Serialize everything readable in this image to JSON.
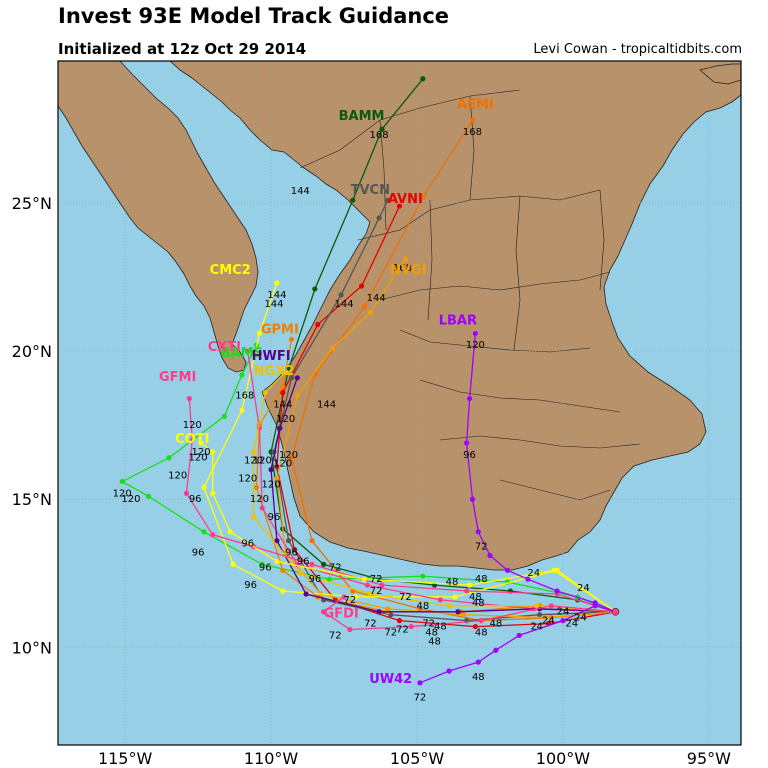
{
  "header": {
    "title": "Invest 93E Model Track Guidance",
    "subtitle": "Initialized at 12z Oct 29 2014",
    "credit": "Levi Cowan - tropicaltidbits.com"
  },
  "map": {
    "lon_range": [
      -117.3,
      -93.9
    ],
    "lat_range": [
      6.7,
      29.8
    ],
    "lon_ticks": [
      {
        "value": -115,
        "label": "115°W"
      },
      {
        "value": -110,
        "label": "110°W"
      },
      {
        "value": -105,
        "label": "105°W"
      },
      {
        "value": -100,
        "label": "100°W"
      },
      {
        "value": -95,
        "label": "95°W"
      }
    ],
    "lat_ticks": [
      {
        "value": 25,
        "label": "25°N"
      },
      {
        "value": 20,
        "label": "20°N"
      },
      {
        "value": 15,
        "label": "15°N"
      },
      {
        "value": 10,
        "label": "10°N"
      }
    ],
    "colors": {
      "ocean": "#97d0e6",
      "land": "#b8926a",
      "border": "#222222",
      "grid": "#8aaab8"
    }
  },
  "chart_data": {
    "type": "line",
    "title": "Invest 93E Model Track Guidance",
    "initial_position": [
      -98.2,
      11.2
    ],
    "series": [
      {
        "name": "BAMM",
        "color": "#0b5a0b",
        "label_pos": [
          -106.9,
          27.8
        ],
        "points": [
          [
            -98.2,
            11.2
          ],
          [
            -99.5,
            11.6
          ],
          [
            -101.8,
            11.9
          ],
          [
            -104.4,
            12.1
          ],
          [
            -106.3,
            12.3
          ],
          [
            -108.2,
            12.8
          ],
          [
            -109.6,
            14.0
          ],
          [
            -110.0,
            16.6
          ],
          [
            -109.4,
            19.4
          ],
          [
            -108.5,
            22.1
          ],
          [
            -107.2,
            25.1
          ],
          [
            -106.2,
            27.5
          ],
          [
            -104.8,
            29.2
          ]
        ],
        "hour_labels": [
          [
            -106.3,
            27.2,
            "168"
          ],
          [
            -109.0,
            25.3,
            "144"
          ]
        ]
      },
      {
        "name": "BAMS",
        "color": "#18e018",
        "label_pos": [
          -111.0,
          19.8
        ],
        "points": [
          [
            -98.2,
            11.2
          ],
          [
            -99.5,
            11.7
          ],
          [
            -101.9,
            12.2
          ],
          [
            -104.8,
            12.4
          ],
          [
            -108.0,
            12.3
          ],
          [
            -110.3,
            12.8
          ],
          [
            -112.3,
            13.9
          ],
          [
            -114.2,
            15.1
          ],
          [
            -115.1,
            15.6
          ],
          [
            -113.5,
            16.4
          ],
          [
            -111.6,
            17.8
          ],
          [
            -111.0,
            19.2
          ],
          [
            -110.5,
            20.2
          ]
        ],
        "hour_labels": [
          [
            -115.1,
            15.1,
            "120"
          ]
        ]
      },
      {
        "name": "AEMI",
        "color": "#f07000",
        "label_pos": [
          -103.0,
          28.2
        ],
        "points": [
          [
            -98.2,
            11.2
          ],
          [
            -100.4,
            11.0
          ],
          [
            -102.8,
            10.9
          ],
          [
            -104.9,
            11.3
          ],
          [
            -107.2,
            11.9
          ],
          [
            -108.6,
            13.6
          ],
          [
            -109.3,
            16.4
          ],
          [
            -108.5,
            19.2
          ],
          [
            -106.8,
            21.5
          ],
          [
            -104.8,
            25.2
          ],
          [
            -103.1,
            27.8
          ]
        ],
        "hour_labels": [
          [
            -103.1,
            27.3,
            "168"
          ]
        ]
      },
      {
        "name": "AVNI",
        "color": "#e80000",
        "label_pos": [
          -105.4,
          25.0
        ],
        "points": [
          [
            -98.2,
            11.2
          ],
          [
            -100.5,
            10.8
          ],
          [
            -103.0,
            10.7
          ],
          [
            -105.6,
            10.9
          ],
          [
            -107.8,
            11.6
          ],
          [
            -109.2,
            13.3
          ],
          [
            -109.8,
            16.1
          ],
          [
            -109.6,
            18.6
          ],
          [
            -108.4,
            20.9
          ],
          [
            -106.9,
            22.2
          ],
          [
            -105.6,
            24.9
          ]
        ],
        "hour_labels": []
      },
      {
        "name": "TVCN",
        "color": "#555555",
        "label_pos": [
          -106.6,
          25.3
        ],
        "points": [
          [
            -98.2,
            11.2
          ],
          [
            -100.8,
            11.1
          ],
          [
            -103.3,
            10.9
          ],
          [
            -105.9,
            11.1
          ],
          [
            -108.2,
            11.6
          ],
          [
            -109.4,
            13.6
          ],
          [
            -109.9,
            16.6
          ],
          [
            -109.3,
            19.1
          ],
          [
            -107.6,
            21.9
          ],
          [
            -106.3,
            24.5
          ],
          [
            -106.0,
            25.1
          ]
        ],
        "hour_labels": [
          [
            -107.5,
            21.5,
            "144"
          ]
        ]
      },
      {
        "name": "NVGI",
        "color": "#f0a000",
        "label_pos": [
          -105.3,
          22.6
        ],
        "points": [
          [
            -98.2,
            11.2
          ],
          [
            -100.6,
            11.0
          ],
          [
            -103.4,
            11.1
          ],
          [
            -106.0,
            11.3
          ],
          [
            -108.3,
            11.8
          ],
          [
            -109.5,
            13.2
          ],
          [
            -109.8,
            15.7
          ],
          [
            -109.1,
            18.5
          ],
          [
            -107.9,
            20.1
          ],
          [
            -106.6,
            21.3
          ],
          [
            -105.4,
            23.1
          ]
        ],
        "hour_labels": [
          [
            -105.5,
            22.7,
            "168"
          ],
          [
            -106.4,
            21.7,
            "144"
          ]
        ]
      },
      {
        "name": "CMC2",
        "color": "#ffff00",
        "label_pos": [
          -111.4,
          22.6
        ],
        "points": [
          [
            -98.2,
            11.2
          ],
          [
            -100.2,
            12.6
          ],
          [
            -103.7,
            11.7
          ],
          [
            -107.1,
            11.7
          ],
          [
            -109.6,
            11.9
          ],
          [
            -111.3,
            12.8
          ],
          [
            -112.3,
            15.4
          ],
          [
            -111.0,
            18.0
          ],
          [
            -110.4,
            20.6
          ],
          [
            -109.8,
            22.3
          ]
        ],
        "hour_labels": [
          [
            -109.8,
            21.8,
            "144"
          ],
          [
            -109.9,
            21.5,
            "144"
          ]
        ]
      },
      {
        "name": "GPMI",
        "color": "#f08000",
        "label_pos": [
          -109.7,
          20.6
        ],
        "points": [
          [
            -98.2,
            11.2
          ],
          [
            -100.8,
            11.4
          ],
          [
            -103.5,
            11.2
          ],
          [
            -106.0,
            11.2
          ],
          [
            -108.4,
            11.7
          ],
          [
            -109.6,
            12.6
          ],
          [
            -110.5,
            15.4
          ],
          [
            -110.4,
            17.5
          ],
          [
            -109.6,
            18.8
          ],
          [
            -109.3,
            20.4
          ]
        ],
        "hour_labels": [
          [
            -109.5,
            17.6,
            "120"
          ]
        ]
      },
      {
        "name": "CXTI",
        "color": "#ff3b8a",
        "label_pos": [
          -111.6,
          20.0
        ],
        "points": [
          [
            -98.2,
            11.2
          ],
          [
            -101.0,
            11.3
          ],
          [
            -104.2,
            11.6
          ],
          [
            -106.7,
            12.1
          ],
          [
            -109.1,
            12.8
          ],
          [
            -110.3,
            14.7
          ],
          [
            -110.4,
            17.4
          ],
          [
            -110.8,
            20.0
          ]
        ],
        "hour_labels": [
          [
            -110.9,
            18.4,
            "168"
          ]
        ]
      },
      {
        "name": "HWFI",
        "color": "#5a008a",
        "label_pos": [
          -110.0,
          19.7
        ],
        "points": [
          [
            -98.2,
            11.2
          ],
          [
            -100.8,
            11.3
          ],
          [
            -103.6,
            11.2
          ],
          [
            -106.3,
            11.2
          ],
          [
            -108.8,
            11.8
          ],
          [
            -109.8,
            13.6
          ],
          [
            -110.0,
            16.0
          ],
          [
            -109.7,
            17.4
          ],
          [
            -109.1,
            19.1
          ]
        ],
        "hour_labels": [
          [
            -109.6,
            16.1,
            "120"
          ]
        ]
      },
      {
        "name": "NGX2",
        "color": "#f0c000",
        "label_pos": [
          -109.9,
          19.2
        ],
        "points": [
          [
            -98.2,
            11.2
          ],
          [
            -100.9,
            11.4
          ],
          [
            -103.9,
            11.4
          ],
          [
            -106.6,
            11.8
          ],
          [
            -109.0,
            12.5
          ],
          [
            -110.6,
            14.4
          ],
          [
            -110.6,
            16.6
          ],
          [
            -110.2,
            18.6
          ],
          [
            -109.5,
            19.3
          ]
        ],
        "hour_labels": [
          [
            -109.4,
            16.4,
            "120"
          ]
        ]
      },
      {
        "name": "GFMI",
        "color": "#ff3b8a",
        "label_pos": [
          -113.2,
          19.0
        ],
        "points": [
          [
            -98.2,
            11.2
          ],
          [
            -100.2,
            11.8
          ],
          [
            -103.3,
            11.9
          ],
          [
            -106.2,
            12.1
          ],
          [
            -108.6,
            12.8
          ],
          [
            -110.6,
            13.4
          ],
          [
            -112.0,
            13.8
          ],
          [
            -112.9,
            15.2
          ],
          [
            -112.7,
            17.0
          ],
          [
            -112.8,
            18.4
          ]
        ],
        "hour_labels": [
          [
            -112.7,
            17.4,
            "120"
          ],
          [
            -112.6,
            14.9,
            "96"
          ]
        ]
      },
      {
        "name": "COTI",
        "color": "#ffff00",
        "label_pos": [
          -112.7,
          16.9
        ],
        "points": [
          [
            -98.2,
            11.2
          ],
          [
            -100.3,
            12.6
          ],
          [
            -103.2,
            12.1
          ],
          [
            -106.8,
            12.3
          ],
          [
            -109.8,
            12.9
          ],
          [
            -111.4,
            13.9
          ],
          [
            -112.0,
            15.2
          ],
          [
            -112.0,
            16.6
          ],
          [
            -112.4,
            16.9
          ]
        ],
        "hour_labels": [
          [
            -112.5,
            16.3,
            "120"
          ]
        ]
      },
      {
        "name": "GFDI",
        "color": "#ff3b8a",
        "label_pos": [
          -107.6,
          11.0
        ],
        "points": [
          [
            -98.2,
            11.2
          ],
          [
            -100.4,
            11.4
          ],
          [
            -102.8,
            10.9
          ],
          [
            -105.2,
            10.7
          ],
          [
            -107.3,
            10.6
          ],
          [
            -108.2,
            11.2
          ],
          [
            -107.5,
            11.7
          ]
        ],
        "hour_labels": []
      },
      {
        "name": "LBAR",
        "color": "#a000ff",
        "label_pos": [
          -103.6,
          20.9
        ],
        "points": [
          [
            -98.2,
            11.2
          ],
          [
            -98.9,
            11.5
          ],
          [
            -100.2,
            11.9
          ],
          [
            -101.2,
            12.3
          ],
          [
            -101.9,
            12.6
          ],
          [
            -102.5,
            13.1
          ],
          [
            -102.9,
            13.9
          ],
          [
            -103.1,
            15.0
          ],
          [
            -103.3,
            16.9
          ],
          [
            -103.2,
            18.4
          ],
          [
            -103.0,
            20.6
          ]
        ],
        "hour_labels": [
          [
            -103.0,
            20.1,
            "120"
          ],
          [
            -103.2,
            16.4,
            "96"
          ],
          [
            -102.8,
            13.3,
            "72"
          ]
        ]
      },
      {
        "name": "UW42",
        "color": "#a000ff",
        "label_pos": [
          -105.9,
          8.8
        ],
        "points": [
          [
            -98.2,
            11.2
          ],
          [
            -98.9,
            11.4
          ],
          [
            -100.0,
            10.9
          ],
          [
            -101.5,
            10.4
          ],
          [
            -102.3,
            9.9
          ],
          [
            -102.9,
            9.5
          ],
          [
            -103.9,
            9.2
          ],
          [
            -104.9,
            8.8
          ]
        ],
        "hour_labels": [
          [
            -104.9,
            8.2,
            "72"
          ],
          [
            -102.9,
            8.9,
            "48"
          ]
        ]
      }
    ],
    "extra_hour_labels": [
      [
        -99.3,
        11.9,
        "24"
      ],
      [
        -100.0,
        11.1,
        "24"
      ],
      [
        -100.5,
        10.8,
        "24"
      ],
      [
        -100.9,
        10.6,
        "24"
      ],
      [
        -101.0,
        12.4,
        "24"
      ],
      [
        -102.8,
        12.2,
        "48"
      ],
      [
        -103.0,
        11.6,
        "48"
      ],
      [
        -102.9,
        11.4,
        "48"
      ],
      [
        -102.8,
        10.4,
        "48"
      ],
      [
        -102.3,
        10.7,
        "48"
      ],
      [
        -103.8,
        12.1,
        "48"
      ],
      [
        -104.2,
        10.6,
        "48"
      ],
      [
        -104.4,
        10.1,
        "48"
      ],
      [
        -106.4,
        12.2,
        "72"
      ],
      [
        -105.4,
        11.6,
        "72"
      ],
      [
        -107.8,
        12.6,
        "72"
      ],
      [
        -107.3,
        11.5,
        "72"
      ],
      [
        -106.4,
        11.8,
        "72"
      ],
      [
        -107.8,
        10.3,
        "72"
      ],
      [
        -106.6,
        10.7,
        "72"
      ],
      [
        -105.9,
        10.4,
        "72"
      ],
      [
        -105.5,
        10.5,
        "72"
      ],
      [
        -104.6,
        10.7,
        "72"
      ],
      [
        -108.5,
        12.2,
        "96"
      ],
      [
        -109.3,
        13.1,
        "96"
      ],
      [
        -108.9,
        12.8,
        "96"
      ],
      [
        -110.8,
        13.4,
        "96"
      ],
      [
        -110.2,
        12.6,
        "96"
      ],
      [
        -110.7,
        12.0,
        "96"
      ],
      [
        -112.5,
        13.1,
        "96"
      ],
      [
        -109.9,
        14.3,
        "96"
      ],
      [
        -110.3,
        16.2,
        "120"
      ],
      [
        -110.0,
        15.4,
        "120"
      ],
      [
        -110.8,
        15.6,
        "120"
      ],
      [
        -110.4,
        14.9,
        "120"
      ],
      [
        -112.4,
        16.5,
        "120"
      ],
      [
        -113.2,
        15.7,
        "120"
      ],
      [
        -114.8,
        14.9,
        "120"
      ],
      [
        -109.6,
        18.1,
        "144"
      ],
      [
        -108.1,
        18.1,
        "144"
      ],
      [
        -110.6,
        16.2,
        "120"
      ],
      [
        -104.8,
        11.3,
        "48"
      ],
      [
        -104.5,
        10.4,
        "48"
      ],
      [
        -99.7,
        10.7,
        "24"
      ],
      [
        -99.4,
        10.9,
        "24"
      ]
    ]
  }
}
